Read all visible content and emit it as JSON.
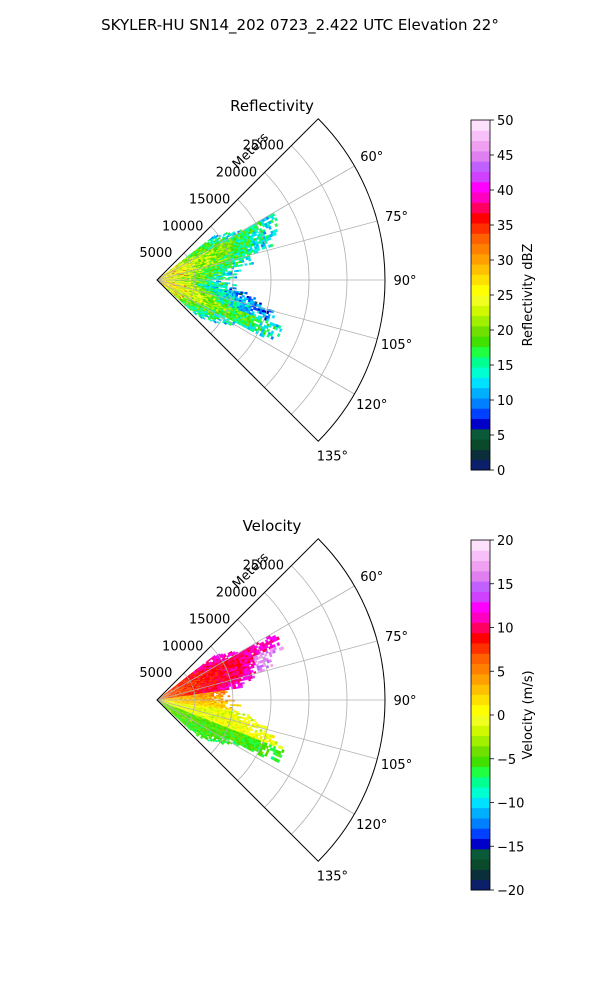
{
  "suptitle": "SKYLER-HU  SN14_202  0723_2.422 UTC Elevation 22°",
  "range_unit": "Meters",
  "chart_data": [
    {
      "type": "heatmap",
      "title": "Reflectivity",
      "projection": "polar sector",
      "range_ticks": [
        "5000",
        "10000",
        "15000",
        "20000",
        "25000"
      ],
      "range_max": 30000,
      "azimuth_ticks": [
        "60°",
        "75°",
        "90°",
        "105°",
        "120°",
        "135°"
      ],
      "azimuth_range_deg": [
        45,
        135
      ],
      "grid": true,
      "colorbar": {
        "label": "Reflectivity dBZ",
        "range": [
          0,
          50
        ],
        "ticks": [
          "0",
          "5",
          "10",
          "15",
          "20",
          "25",
          "30",
          "35",
          "40",
          "45",
          "50"
        ],
        "colors": [
          "#0b1f6b",
          "#0b2f3a",
          "#0a4a2a",
          "#0a5a3a",
          "#0000c8",
          "#0040ff",
          "#0080ff",
          "#00b0ff",
          "#00e0ff",
          "#00ffd0",
          "#00ff90",
          "#20ff40",
          "#40e000",
          "#70e000",
          "#a0f000",
          "#d0f800",
          "#f0ff20",
          "#ffff00",
          "#ffe000",
          "#ffc000",
          "#ffa000",
          "#ff8000",
          "#ff6000",
          "#ff3000",
          "#ff0000",
          "#ff0060",
          "#ff00c0",
          "#ff00ff",
          "#d040ff",
          "#c060ff",
          "#e080f0",
          "#f0a0f0",
          "#f8c0f8",
          "#fce0fc"
        ]
      },
      "data_description": "Echo spans roughly 0–17 km; 20–30 dBZ (yellow/green) near the radar, 10–18 dBZ (cyan/green) at outer edges, isolated 30–35 dBZ (red) cells near the origin."
    },
    {
      "type": "heatmap",
      "title": "Velocity",
      "projection": "polar sector",
      "range_ticks": [
        "5000",
        "10000",
        "15000",
        "20000",
        "25000"
      ],
      "range_max": 30000,
      "azimuth_ticks": [
        "60°",
        "75°",
        "90°",
        "105°",
        "120°",
        "135°"
      ],
      "azimuth_range_deg": [
        45,
        135
      ],
      "grid": true,
      "colorbar": {
        "label": "Velocity (m/s)",
        "range": [
          -20,
          20
        ],
        "ticks": [
          "−20",
          "−15",
          "−10",
          "−5",
          "0",
          "5",
          "10",
          "15",
          "20"
        ],
        "colors": [
          "#0b1f6b",
          "#0b2f3a",
          "#0a4a2a",
          "#0a5a3a",
          "#0000c8",
          "#0040ff",
          "#0080ff",
          "#00b0ff",
          "#00e0ff",
          "#00ffd0",
          "#00ff90",
          "#20ff40",
          "#40e000",
          "#70e000",
          "#a0f000",
          "#d0f800",
          "#f0ff20",
          "#ffff00",
          "#ffe000",
          "#ffc000",
          "#ffa000",
          "#ff8000",
          "#ff6000",
          "#ff3000",
          "#ff0000",
          "#ff0060",
          "#ff00c0",
          "#ff00ff",
          "#d040ff",
          "#c060ff",
          "#e080f0",
          "#f0a0f0",
          "#f8c0f8",
          "#fce0fc"
        ]
      },
      "data_description": "Receding velocities 5–12 m/s (orange/red) toward the 60–80° azimuths, 14–17 m/s (violet) near 72° at 15–18 km, near 0 m/s (yellow) around 90–105°, and −3 to −6 m/s (green) along the 120–135° edge."
    }
  ]
}
